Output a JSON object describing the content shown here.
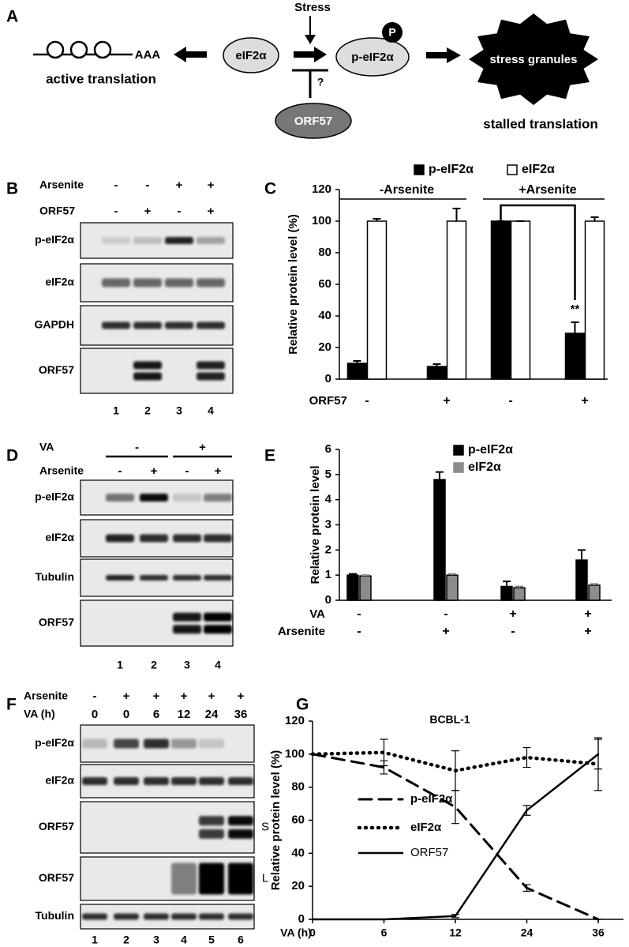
{
  "panel_labels": [
    "A",
    "B",
    "C",
    "D",
    "E",
    "F",
    "G"
  ],
  "diagram": {
    "poly_a": "AAA",
    "left_caption": "active translation",
    "eif2a": "eIF2α",
    "stress": "Stress",
    "peif2a": "p-eIF2α",
    "phospho": "P",
    "question": "?",
    "orf57": "ORF57",
    "granules": "stress granules",
    "right_caption": "stalled translation"
  },
  "blot_b": {
    "rows": [
      {
        "label": "Arsenite",
        "values": [
          "-",
          "-",
          "+",
          "+"
        ]
      },
      {
        "label": "ORF57",
        "values": [
          "-",
          "+",
          "-",
          "+"
        ]
      }
    ],
    "blots": [
      {
        "label": "p-eIF2α"
      },
      {
        "label": "eIF2α"
      },
      {
        "label": "GAPDH"
      },
      {
        "label": "ORF57"
      }
    ],
    "lanes": [
      "1",
      "2",
      "3",
      "4"
    ]
  },
  "blot_d": {
    "rows": [
      {
        "label": "VA",
        "values": [
          "-",
          "+"
        ]
      },
      {
        "label": "Arsenite",
        "values": [
          "-",
          "+",
          "-",
          "+"
        ]
      }
    ],
    "blots": [
      {
        "label": "p-eIF2α"
      },
      {
        "label": "eIF2α"
      },
      {
        "label": "Tubulin"
      },
      {
        "label": "ORF57"
      }
    ],
    "lanes": [
      "1",
      "2",
      "3",
      "4"
    ]
  },
  "blot_f": {
    "rows": [
      {
        "label": "Arsenite",
        "values": [
          "-",
          "+",
          "+",
          "+",
          "+",
          "+"
        ]
      },
      {
        "label": "VA (h)",
        "values": [
          "0",
          "0",
          "6",
          "12",
          "24",
          "36"
        ]
      }
    ],
    "blots": [
      {
        "label": "p-eIF2α"
      },
      {
        "label": "eIF2α"
      },
      {
        "label": "ORF57",
        "tag": "S"
      },
      {
        "label": "ORF57",
        "tag": "L"
      },
      {
        "label": "Tubulin"
      }
    ],
    "lanes": [
      "1",
      "2",
      "3",
      "4",
      "5",
      "6"
    ]
  },
  "chart_data": [
    {
      "type": "bar",
      "ylabel": "Relative protein level (%)",
      "series": [
        {
          "name": "p-eIF2α",
          "color": "#000000",
          "values": [
            10,
            8,
            100,
            29
          ],
          "errors": [
            1.5,
            1.5,
            0,
            7
          ]
        },
        {
          "name": "eIF2α",
          "color": "#ffffff",
          "values": [
            100,
            100,
            100,
            100
          ],
          "errors": [
            1.5,
            8,
            0,
            2.5
          ]
        }
      ],
      "ylim": [
        0,
        120
      ],
      "yticks": [
        0,
        20,
        40,
        60,
        80,
        100,
        120
      ],
      "groups": [
        "-Arsenite",
        "+Arsenite"
      ],
      "condition_rows": [
        {
          "label": "ORF57",
          "values": [
            "-",
            "+",
            "-",
            "+"
          ]
        }
      ],
      "annotation": "**"
    },
    {
      "type": "bar",
      "ylabel": "Relative protein  level",
      "series": [
        {
          "name": "p-eIF2α",
          "color": "#000000",
          "values": [
            1,
            4.8,
            0.55,
            1.6
          ],
          "errors": [
            0.05,
            0.3,
            0.2,
            0.4
          ]
        },
        {
          "name": "eIF2α",
          "color": "#8c8c8c",
          "values": [
            0.97,
            1,
            0.5,
            0.6
          ],
          "errors": [
            0.03,
            0.05,
            0.05,
            0.05
          ]
        }
      ],
      "ylim": [
        0,
        6
      ],
      "yticks": [
        0,
        1,
        2,
        3,
        4,
        5,
        6
      ],
      "condition_rows": [
        {
          "label": "VA",
          "values": [
            "-",
            "-",
            "+",
            "+"
          ]
        },
        {
          "label": "Arsenite",
          "values": [
            "-",
            "+",
            "-",
            "+"
          ]
        }
      ]
    },
    {
      "type": "line",
      "title": "BCBL-1",
      "xlabel": "VA (h)",
      "ylabel": "Relative protein level (%)",
      "categories": [
        "0",
        "6",
        "12",
        "24",
        "36"
      ],
      "series": [
        {
          "name": "p-eIF2α",
          "color": "#000000",
          "dash": "dashed",
          "values": [
            100,
            92,
            68,
            19,
            0
          ],
          "errors": [
            0,
            4,
            10,
            2,
            0
          ]
        },
        {
          "name": "eIF2α",
          "color": "#000000",
          "dash": "dotted",
          "values": [
            100,
            101,
            90,
            98,
            94
          ],
          "errors": [
            0,
            8,
            12,
            6,
            16
          ]
        },
        {
          "name": "ORF57",
          "color": "#000000",
          "dash": "solid",
          "values": [
            0,
            0,
            2,
            66,
            100
          ],
          "errors": [
            0,
            0,
            1,
            3,
            9
          ]
        }
      ],
      "ylim": [
        0,
        120
      ],
      "yticks": [
        0,
        20,
        40,
        60,
        80,
        100,
        120
      ]
    }
  ]
}
